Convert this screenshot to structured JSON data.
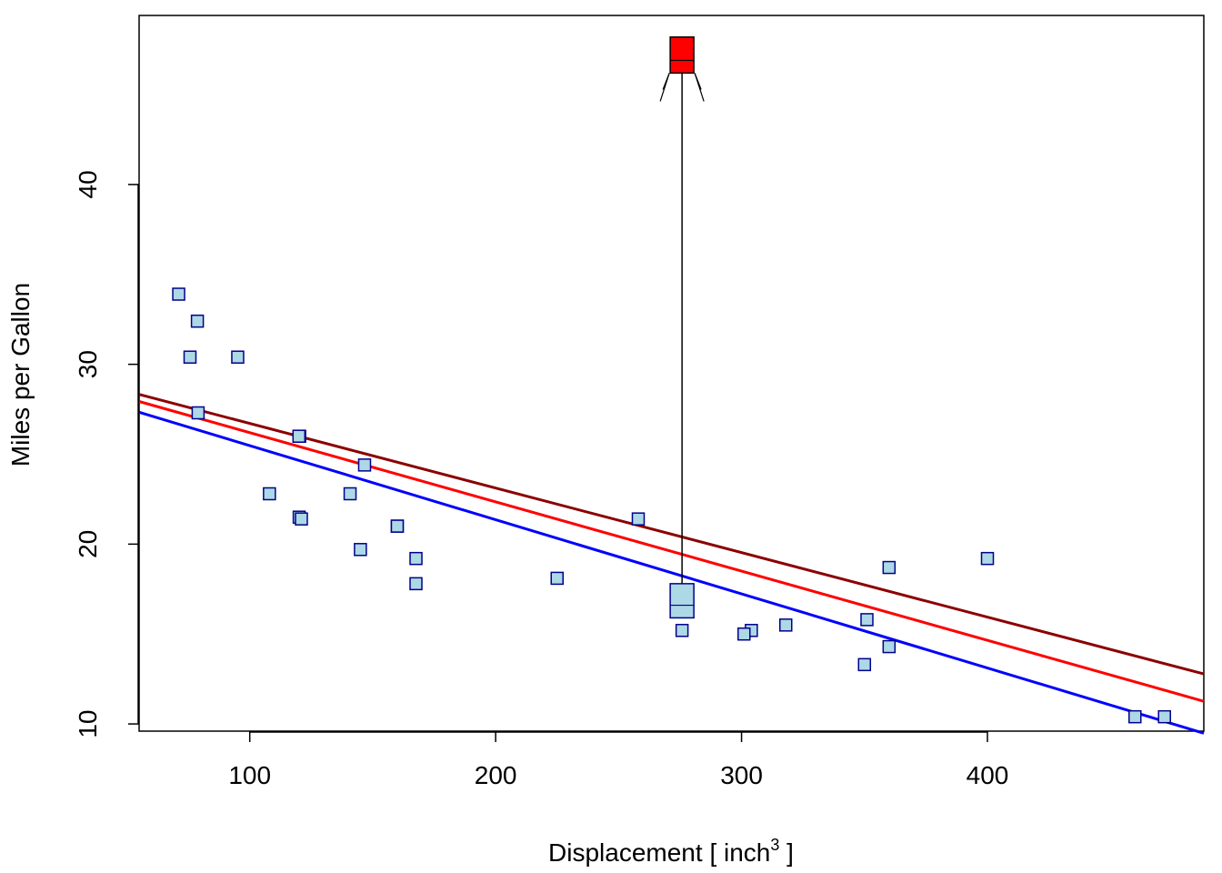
{
  "chart_data": {
    "type": "scatter",
    "title": "",
    "xlabel": {
      "main": "Displacement [ inch",
      "sup": "3",
      "close": " ]"
    },
    "ylabel": "Miles per Gallon",
    "xlim": [
      55,
      488
    ],
    "ylim": [
      9.6,
      49.4
    ],
    "xticks": [
      100,
      200,
      300,
      400
    ],
    "yticks": [
      10,
      20,
      30,
      40
    ],
    "colors": {
      "point_fill": "#add8e6",
      "point_stroke": "#00008b",
      "highlight_fill": "#ff0000",
      "line_blue": "#0000ff",
      "line_red": "#ff0000",
      "line_darkred": "#8b0000",
      "axis": "#000000"
    },
    "points": [
      {
        "x": 160,
        "y": 21.0
      },
      {
        "x": 160,
        "y": 21.0
      },
      {
        "x": 108,
        "y": 22.8
      },
      {
        "x": 258,
        "y": 21.4
      },
      {
        "x": 360,
        "y": 18.7
      },
      {
        "x": 225,
        "y": 18.1
      },
      {
        "x": 360,
        "y": 14.3
      },
      {
        "x": 146.7,
        "y": 24.4
      },
      {
        "x": 140.8,
        "y": 22.8
      },
      {
        "x": 167.6,
        "y": 19.2
      },
      {
        "x": 167.6,
        "y": 17.8
      },
      {
        "x": 275.8,
        "y": 15.2
      },
      {
        "x": 472,
        "y": 10.4
      },
      {
        "x": 460,
        "y": 10.4
      },
      {
        "x": 78.7,
        "y": 32.4
      },
      {
        "x": 75.7,
        "y": 30.4
      },
      {
        "x": 71.1,
        "y": 33.9
      },
      {
        "x": 120.1,
        "y": 21.5
      },
      {
        "x": 318,
        "y": 15.5
      },
      {
        "x": 304,
        "y": 15.2
      },
      {
        "x": 350,
        "y": 13.3
      },
      {
        "x": 400,
        "y": 19.2
      },
      {
        "x": 79,
        "y": 27.3
      },
      {
        "x": 120.3,
        "y": 26.0
      },
      {
        "x": 95.1,
        "y": 30.4
      },
      {
        "x": 351,
        "y": 15.8
      },
      {
        "x": 145,
        "y": 19.7
      },
      {
        "x": 121,
        "y": 21.4
      },
      {
        "x": 120,
        "y": 26.0
      },
      {
        "x": 301,
        "y": 15.0
      }
    ],
    "highlighted_boxes": [
      {
        "x": 275.8,
        "y_low": 15.9,
        "y_high": 17.8,
        "y_mid": 16.6,
        "fill": "#add8e6"
      },
      {
        "x": 275.8,
        "y_low": 46.2,
        "y_high": 48.2,
        "y_mid": 46.9,
        "fill": "#ff0000"
      }
    ],
    "series": [
      {
        "type": "line",
        "intercept": 29.6,
        "slope": -0.04122,
        "color": "#0000ff"
      },
      {
        "type": "line",
        "intercept": 30.05,
        "slope": -0.0385,
        "color": "#ff0000"
      },
      {
        "type": "line",
        "intercept": 30.3,
        "slope": -0.0359,
        "color": "#8b0000"
      }
    ],
    "arrow": {
      "x": 275.8,
      "from_y": 16.6,
      "to_y": 46.9
    },
    "grid": false,
    "legend": "none"
  }
}
